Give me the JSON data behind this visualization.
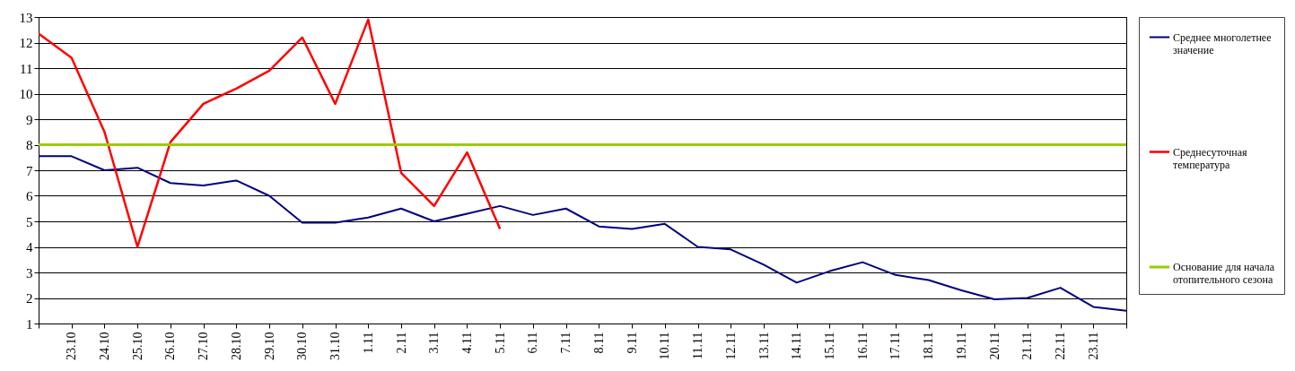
{
  "chart_data": {
    "type": "line",
    "categories": [
      null,
      "23.10",
      "24.10",
      "25.10",
      "26.10",
      "27.10",
      "28.10",
      "29.10",
      "30.10",
      "31.10",
      "1.11",
      "2.11",
      "3.11",
      "4.11",
      "5.11",
      "6.11",
      "7.11",
      "8.11",
      "9.11",
      "10.11",
      "11.11",
      "12.11",
      "13.11",
      "14.11",
      "15.11",
      "16.11",
      "17.11",
      "18.11",
      "19.11",
      "20.11",
      "21.11",
      "22.11",
      "23.11",
      null
    ],
    "ylim": [
      1,
      13
    ],
    "yticks": [
      1,
      2,
      3,
      4,
      5,
      6,
      7,
      8,
      9,
      10,
      11,
      12,
      13
    ],
    "grid": "y",
    "legend": "right",
    "marker": "none",
    "line_style": "solid",
    "series": [
      {
        "name": "Среднее многолетнее значение",
        "color": "#000080",
        "values": [
          7.55,
          7.55,
          7.0,
          7.1,
          6.5,
          6.4,
          6.6,
          6.0,
          4.95,
          4.95,
          5.15,
          5.5,
          5.0,
          5.3,
          5.6,
          5.25,
          5.5,
          4.8,
          4.7,
          4.9,
          4.0,
          3.9,
          3.3,
          2.6,
          3.05,
          3.4,
          2.9,
          2.7,
          2.3,
          1.95,
          2.0,
          2.4,
          1.65,
          1.5
        ]
      },
      {
        "name": "Среднесуточная температура",
        "color": "#ff0000",
        "values": [
          12.35,
          11.4,
          8.5,
          4.0,
          8.1,
          9.6,
          10.2,
          10.9,
          12.2,
          9.6,
          12.9,
          6.9,
          5.6,
          7.7,
          4.7,
          null,
          null,
          null,
          null,
          null,
          null,
          null,
          null,
          null,
          null,
          null,
          null,
          null,
          null,
          null,
          null,
          null,
          null,
          null
        ]
      },
      {
        "name": "Основание для начала отопительного сезона",
        "color": "#99cc00",
        "values": [
          8,
          8,
          8,
          8,
          8,
          8,
          8,
          8,
          8,
          8,
          8,
          8,
          8,
          8,
          8,
          8,
          8,
          8,
          8,
          8,
          8,
          8,
          8,
          8,
          8,
          8,
          8,
          8,
          8,
          8,
          8,
          8,
          8,
          8
        ]
      }
    ]
  }
}
